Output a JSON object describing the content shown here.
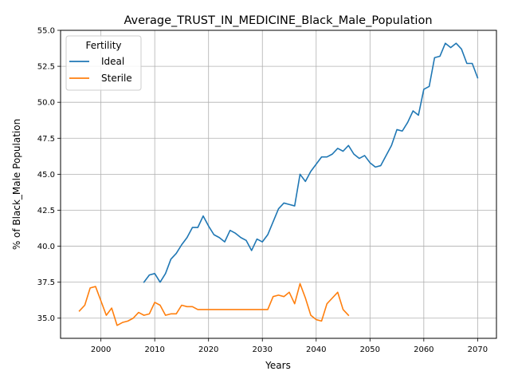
{
  "chart_data": {
    "type": "line",
    "title": "Average_TRUST_IN_MEDICINE_Black_Male_Population",
    "xlabel": "Years",
    "ylabel": "% of Black_Male Population",
    "xlim": [
      1992.5,
      2073.5
    ],
    "ylim": [
      33.6,
      55.0
    ],
    "xticks": [
      2000,
      2010,
      2020,
      2030,
      2040,
      2050,
      2060,
      2070
    ],
    "yticks": [
      35.0,
      37.5,
      40.0,
      42.5,
      45.0,
      47.5,
      50.0,
      52.5,
      55.0
    ],
    "grid": true,
    "legend": {
      "title": "Fertility",
      "placement": "top-left"
    },
    "series": [
      {
        "name": "Ideal",
        "color": "#1f77b4",
        "x": [
          2008,
          2009,
          2010,
          2011,
          2012,
          2013,
          2014,
          2015,
          2016,
          2017,
          2018,
          2019,
          2020,
          2021,
          2022,
          2023,
          2024,
          2025,
          2026,
          2027,
          2028,
          2029,
          2030,
          2031,
          2032,
          2033,
          2034,
          2035,
          2036,
          2037,
          2038,
          2039,
          2040,
          2041,
          2042,
          2043,
          2044,
          2045,
          2046,
          2047,
          2048,
          2049,
          2050,
          2051,
          2052,
          2053,
          2054,
          2055,
          2056,
          2057,
          2058,
          2059,
          2060,
          2061,
          2062,
          2063,
          2064,
          2065,
          2066,
          2067,
          2068,
          2069,
          2070
        ],
        "y": [
          37.5,
          38.0,
          38.1,
          37.5,
          38.1,
          39.1,
          39.5,
          40.1,
          40.6,
          41.3,
          41.3,
          42.1,
          41.4,
          40.8,
          40.6,
          40.3,
          41.1,
          40.9,
          40.6,
          40.4,
          39.7,
          40.5,
          40.3,
          40.8,
          41.7,
          42.6,
          43.0,
          42.9,
          42.8,
          45.0,
          44.5,
          45.2,
          45.7,
          46.2,
          46.2,
          46.4,
          46.8,
          46.6,
          47.0,
          46.4,
          46.1,
          46.3,
          45.8,
          45.5,
          45.6,
          46.3,
          47.0,
          48.1,
          48.0,
          48.6,
          49.4,
          49.1,
          50.9,
          51.1,
          53.1,
          53.2,
          54.1,
          53.8,
          54.1,
          53.7,
          52.7,
          52.7,
          51.7
        ]
      },
      {
        "name": "Sterile",
        "color": "#ff7f0e",
        "x": [
          1996,
          1997,
          1998,
          1999,
          2000,
          2001,
          2002,
          2003,
          2004,
          2005,
          2006,
          2007,
          2008,
          2009,
          2010,
          2011,
          2012,
          2013,
          2014,
          2015,
          2016,
          2017,
          2018,
          2019,
          2020,
          2021,
          2022,
          2023,
          2024,
          2025,
          2026,
          2027,
          2028,
          2029,
          2030,
          2031,
          2032,
          2033,
          2034,
          2035,
          2036,
          2037,
          2038,
          2039,
          2040,
          2041,
          2042,
          2043,
          2044,
          2045,
          2046
        ],
        "y": [
          35.5,
          35.9,
          37.1,
          37.2,
          36.2,
          35.2,
          35.7,
          34.5,
          34.7,
          34.8,
          35.0,
          35.4,
          35.2,
          35.3,
          36.1,
          35.9,
          35.2,
          35.3,
          35.3,
          35.9,
          35.8,
          35.8,
          35.6,
          35.6,
          35.6,
          35.6,
          35.6,
          35.6,
          35.6,
          35.6,
          35.6,
          35.6,
          35.6,
          35.6,
          35.6,
          35.6,
          36.5,
          36.6,
          36.5,
          36.8,
          36.0,
          37.4,
          36.4,
          35.2,
          34.9,
          34.8,
          36.0,
          36.4,
          36.8,
          35.6,
          35.2
        ]
      }
    ]
  }
}
